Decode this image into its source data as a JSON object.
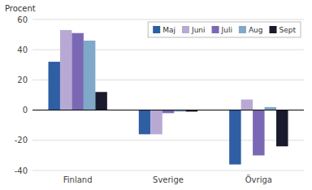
{
  "chart_data": {
    "type": "bar",
    "ylabel": "Procent",
    "categories": [
      "Finland",
      "Sverige",
      "Övriga"
    ],
    "series": [
      {
        "name": "Maj",
        "color": "#2e5fa3",
        "values": [
          32,
          -16,
          -36
        ]
      },
      {
        "name": "Juni",
        "color": "#b8a9d4",
        "values": [
          53,
          -16,
          7
        ]
      },
      {
        "name": "Juli",
        "color": "#7b68b5",
        "values": [
          51,
          -2,
          -30
        ]
      },
      {
        "name": "Aug",
        "color": "#7fa8c9",
        "values": [
          46,
          -1,
          2
        ]
      },
      {
        "name": "Sept",
        "color": "#1a1a2e",
        "values": [
          12,
          -1,
          -24
        ]
      }
    ],
    "ylim": [
      -40,
      60
    ],
    "yticks": [
      -40,
      -20,
      0,
      20,
      40,
      60
    ],
    "grid": true,
    "legend": "upper right"
  }
}
